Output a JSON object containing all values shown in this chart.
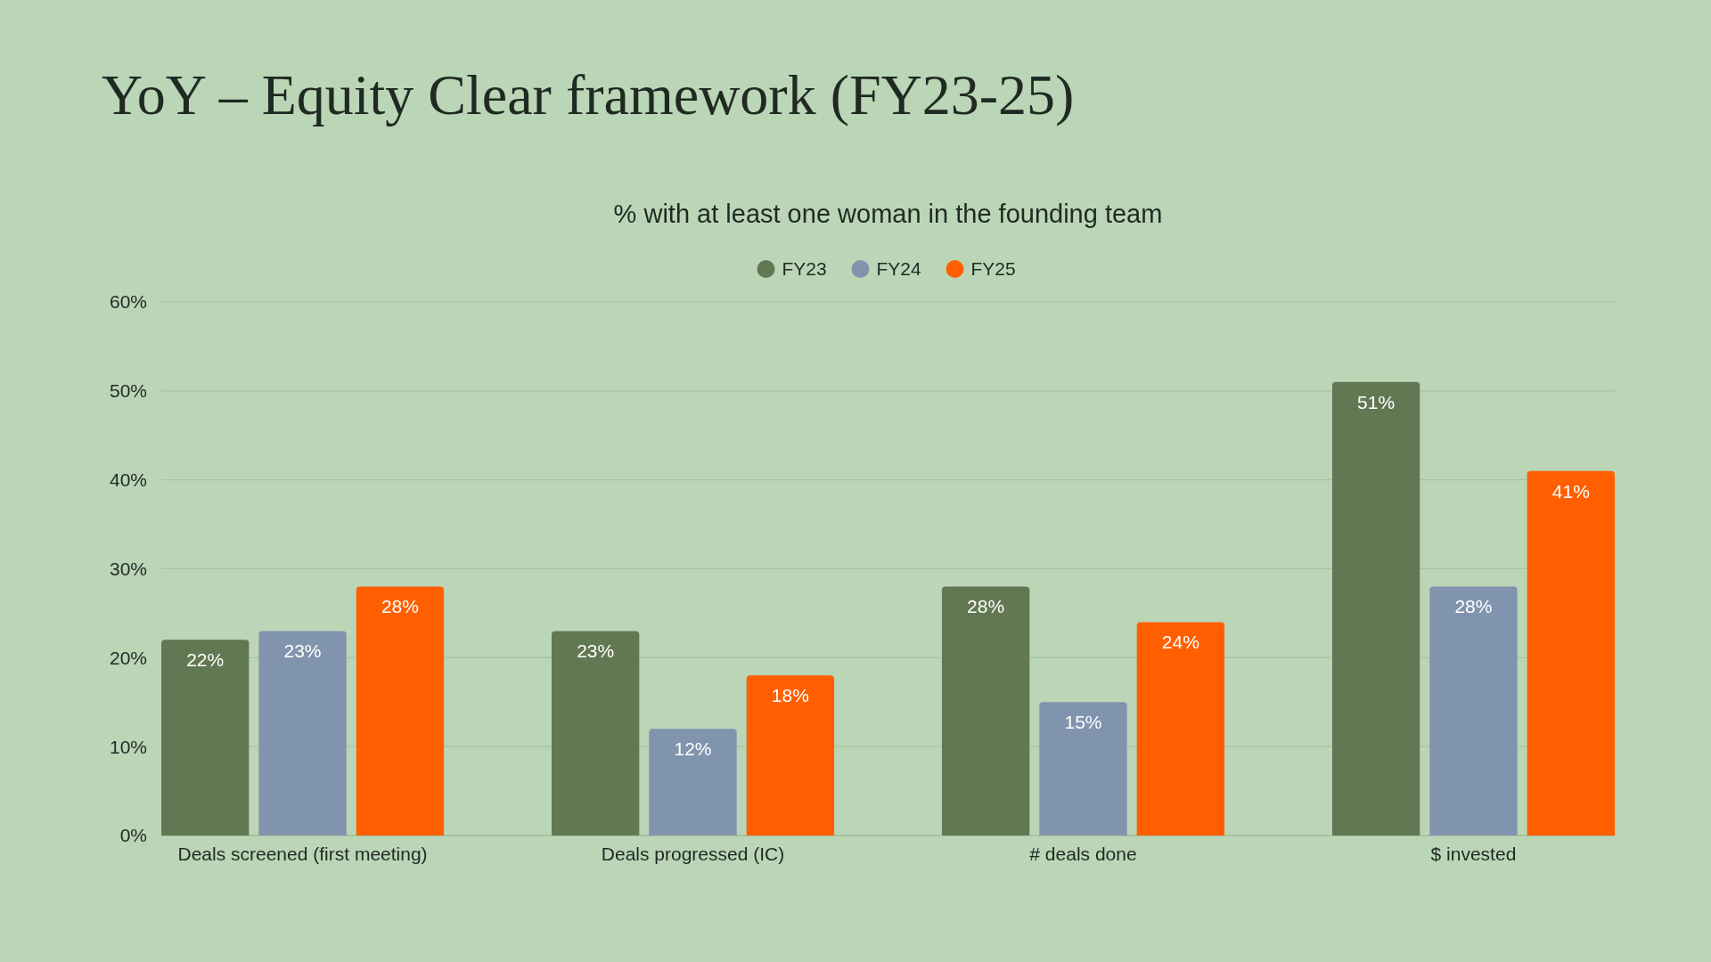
{
  "chart_data": {
    "type": "bar",
    "title": "YoY – Equity Clear framework (FY23-25)",
    "subtitle": "% with at least one woman in the founding team",
    "categories": [
      "Deals screened (first meeting)",
      "Deals progressed (IC)",
      "# deals done",
      "$ invested"
    ],
    "series": [
      {
        "name": "FY23",
        "color": "#627852",
        "values": [
          22,
          23,
          28,
          51
        ]
      },
      {
        "name": "FY24",
        "color": "#8194ae",
        "values": [
          23,
          12,
          15,
          28
        ]
      },
      {
        "name": "FY25",
        "color": "#ff5f00",
        "values": [
          28,
          18,
          24,
          41
        ]
      }
    ],
    "ylim": [
      0,
      60
    ],
    "yticks": [
      {
        "value": 0,
        "label": "0%"
      },
      {
        "value": 10,
        "label": "10%"
      },
      {
        "value": 20,
        "label": "20%"
      },
      {
        "value": 30,
        "label": "30%"
      },
      {
        "value": 40,
        "label": "40%"
      },
      {
        "value": 50,
        "label": "50%"
      },
      {
        "value": 60,
        "label": "60%"
      }
    ],
    "value_labels": [
      [
        "22%",
        "23%",
        "28%",
        "51%"
      ],
      [
        "23%",
        "12%",
        "15%",
        "28%"
      ],
      [
        "28%",
        "18%",
        "24%",
        "41%"
      ]
    ],
    "grid": "y",
    "legend": "top"
  }
}
